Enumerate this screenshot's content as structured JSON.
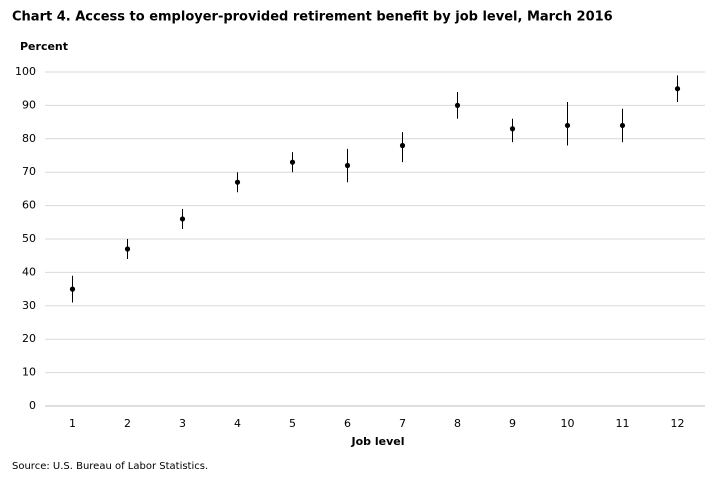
{
  "chart_data": {
    "type": "errorbar",
    "title": "Chart 4. Access to employer-provided retirement benefit by job level, March 2016",
    "y_label": "Percent",
    "x_label": "Job level",
    "source": "Source: U.S. Bureau of Labor Statistics.",
    "categories": [
      "1",
      "2",
      "3",
      "4",
      "5",
      "6",
      "7",
      "8",
      "9",
      "10",
      "11",
      "12"
    ],
    "values": [
      35,
      47,
      56,
      67,
      73,
      72,
      78,
      90,
      83,
      84,
      84,
      95
    ],
    "ci_low": [
      31,
      44,
      53,
      64,
      70,
      67,
      73,
      86,
      79,
      78,
      79,
      91
    ],
    "ci_high": [
      39,
      50,
      59,
      70,
      76,
      77,
      82,
      94,
      86,
      91,
      89,
      99
    ],
    "color": "#000000",
    "ylim": [
      0,
      100
    ],
    "yticks": [
      0,
      10,
      20,
      30,
      40,
      50,
      60,
      70,
      80,
      90,
      100
    ],
    "grid": true
  }
}
